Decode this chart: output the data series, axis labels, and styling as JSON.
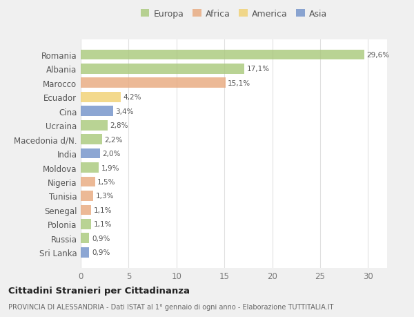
{
  "categories": [
    "Romania",
    "Albania",
    "Marocco",
    "Ecuador",
    "Cina",
    "Ucraina",
    "Macedonia d/N.",
    "India",
    "Moldova",
    "Nigeria",
    "Tunisia",
    "Senegal",
    "Polonia",
    "Russia",
    "Sri Lanka"
  ],
  "values": [
    29.6,
    17.1,
    15.1,
    4.2,
    3.4,
    2.8,
    2.2,
    2.0,
    1.9,
    1.5,
    1.3,
    1.1,
    1.1,
    0.9,
    0.9
  ],
  "labels": [
    "29,6%",
    "17,1%",
    "15,1%",
    "4,2%",
    "3,4%",
    "2,8%",
    "2,2%",
    "2,0%",
    "1,9%",
    "1,5%",
    "1,3%",
    "1,1%",
    "1,1%",
    "0,9%",
    "0,9%"
  ],
  "continent": [
    "Europa",
    "Europa",
    "Africa",
    "America",
    "Asia",
    "Europa",
    "Europa",
    "Asia",
    "Europa",
    "Africa",
    "Africa",
    "Africa",
    "Europa",
    "Europa",
    "Asia"
  ],
  "colors": {
    "Europa": "#a8c87a",
    "Africa": "#e8a87c",
    "America": "#f0d070",
    "Asia": "#7090c8"
  },
  "legend_order": [
    "Europa",
    "Africa",
    "America",
    "Asia"
  ],
  "legend_colors": [
    "#a8c87a",
    "#e8a87c",
    "#f0d070",
    "#7090c8"
  ],
  "title": "Cittadini Stranieri per Cittadinanza",
  "subtitle": "PROVINCIA DI ALESSANDRIA - Dati ISTAT al 1° gennaio di ogni anno - Elaborazione TUTTITALIA.IT",
  "xlim": [
    0,
    32
  ],
  "xticks": [
    0,
    5,
    10,
    15,
    20,
    25,
    30
  ],
  "background_color": "#f0f0f0",
  "plot_bg_color": "#ffffff",
  "grid_color": "#e0e0e0",
  "bar_alpha": 0.8,
  "bar_height": 0.72
}
